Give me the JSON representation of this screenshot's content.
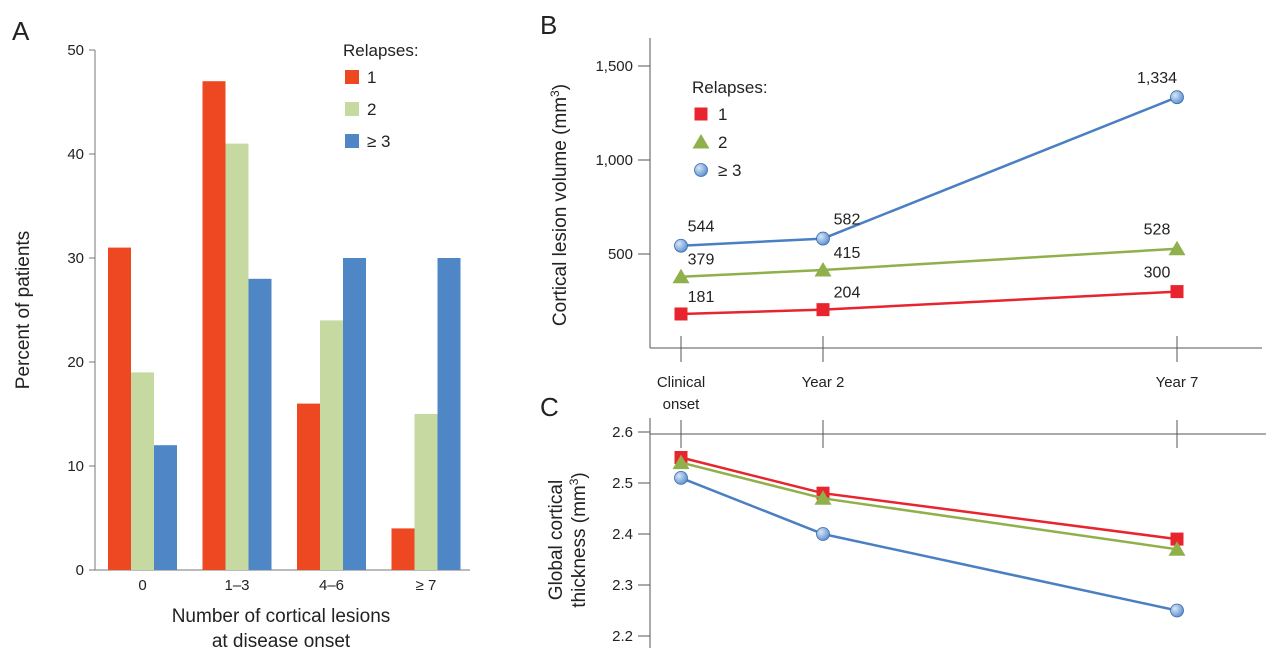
{
  "panels": {
    "a": {
      "label": "A"
    },
    "b": {
      "label": "B"
    },
    "c": {
      "label": "C"
    }
  },
  "chart_data": [
    {
      "id": "A",
      "type": "bar",
      "ylabel": "Percent of patients",
      "xlabel_lines": [
        "Number of cortical lesions",
        "at disease onset"
      ],
      "ylim": [
        0,
        50
      ],
      "yticks": [
        "0",
        "10",
        "20",
        "30",
        "40",
        "50"
      ],
      "categories": [
        "0",
        "1–3",
        "4–6",
        "≥ 7"
      ],
      "legend_title": "Relapses:",
      "legend_position": "top-right",
      "series": [
        {
          "name": "1",
          "color": "#ee4822",
          "values": [
            31,
            47,
            16,
            4
          ]
        },
        {
          "name": "2",
          "color": "#c6d9a0",
          "values": [
            19,
            41,
            24,
            15
          ]
        },
        {
          "name": "≥ 3",
          "color": "#4f86c6",
          "values": [
            12,
            28,
            30,
            30
          ]
        }
      ]
    },
    {
      "id": "B",
      "type": "line",
      "ylabel": "Cortical lesion volume (mm³)",
      "yticks": [
        "500",
        "1,000",
        "1,500"
      ],
      "ylim": [
        0,
        1600
      ],
      "x_categories": [
        "Clinical onset",
        "Year 2",
        "Year 7"
      ],
      "x_tick_labels": [
        [
          "Clinical",
          "onset"
        ],
        [
          "Year 2"
        ],
        [
          "Year 7"
        ]
      ],
      "legend_title": "Relapses:",
      "legend_position": "top-left",
      "series": [
        {
          "name": "1",
          "marker": "square",
          "color": "#e8242e",
          "values": [
            181,
            204,
            300
          ],
          "labels": [
            "181",
            "204",
            "300"
          ]
        },
        {
          "name": "2",
          "marker": "triangle",
          "color": "#8fb04a",
          "values": [
            379,
            415,
            528
          ],
          "labels": [
            "379",
            "415",
            "528"
          ]
        },
        {
          "name": "≥ 3",
          "marker": "circle",
          "color": "#4a7fc2",
          "values": [
            544,
            582,
            1334
          ],
          "labels": [
            "544",
            "582",
            "1,334"
          ]
        }
      ]
    },
    {
      "id": "C",
      "type": "line",
      "ylabel_lines": [
        "Global cortical",
        "thickness (mm³)"
      ],
      "yticks": [
        "2.2",
        "2.3",
        "2.4",
        "2.5",
        "2.6"
      ],
      "ylim": [
        2.2,
        2.6
      ],
      "x_categories": [
        "Clinical onset",
        "Year 2",
        "Year 7"
      ],
      "series": [
        {
          "name": "1",
          "marker": "square",
          "color": "#e8242e",
          "values": [
            2.55,
            2.48,
            2.39
          ]
        },
        {
          "name": "2",
          "marker": "triangle",
          "color": "#8fb04a",
          "values": [
            2.54,
            2.47,
            2.37
          ]
        },
        {
          "name": "≥ 3",
          "marker": "circle",
          "color": "#4a7fc2",
          "values": [
            2.51,
            2.4,
            2.25
          ]
        }
      ]
    }
  ]
}
